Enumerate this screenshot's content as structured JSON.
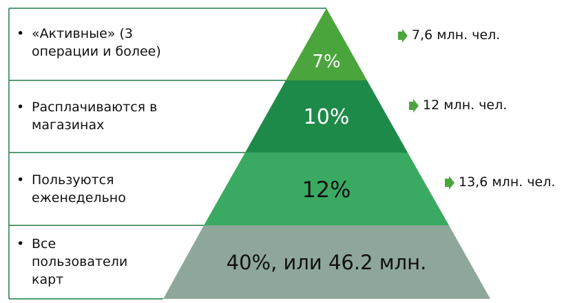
{
  "levels": [
    {
      "label": "«Активные» (3 операции и более)",
      "value": "7%",
      "note": "7,6 млн. чел."
    },
    {
      "label": "Расплачиваются в магазинах",
      "value": "10%",
      "note": "12 млн. чел."
    },
    {
      "label": "Пользуются еженедельно",
      "value": "12%",
      "note": "13,6 млн. чел."
    },
    {
      "label": "Все пользователи карт",
      "value": "40%, или 46.2 млн."
    }
  ]
}
